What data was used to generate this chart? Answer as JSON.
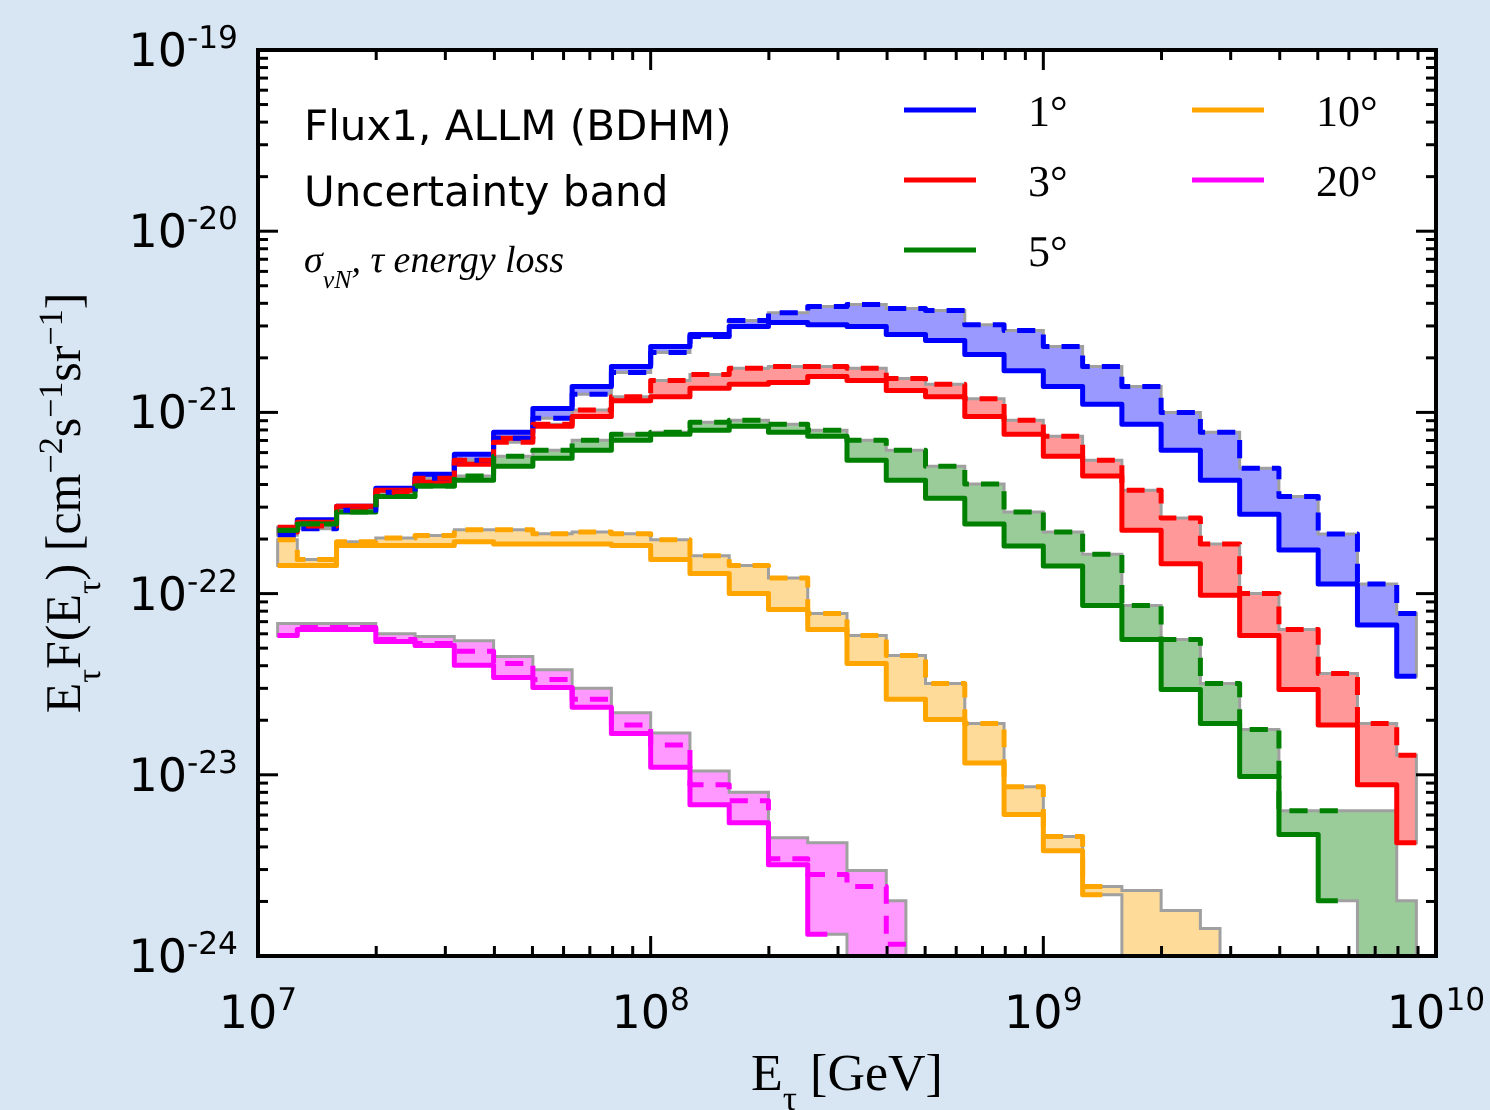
{
  "chart_data": {
    "type": "step",
    "xlabel": "E$_{τ}$ [GeV]",
    "ylabel": "E$_{τ}$F(E$_{τ}$) [cm$^{−2}$s$^{−1}$sr$^{−1}$]",
    "annotations": [
      "Flux1, ALLM (BDHM)",
      "Uncertainty band",
      "σ$_{νN}$, τ energy loss"
    ],
    "log": "xy",
    "legend": "top right",
    "xlim": [
      10000000,
      10000000000
    ],
    "ylim": [
      1e-24,
      1e-19
    ],
    "xticks": [
      {
        "value": 10000000,
        "label": "10$^{7}$"
      },
      {
        "value": 20000000,
        "label": null
      },
      {
        "value": 30000000,
        "label": null
      },
      {
        "value": 40000000,
        "label": null
      },
      {
        "value": 50000000,
        "label": null
      },
      {
        "value": 60000000,
        "label": null
      },
      {
        "value": 70000000,
        "label": null
      },
      {
        "value": 80000000,
        "label": null
      },
      {
        "value": 90000000,
        "label": null
      },
      {
        "value": 100000000,
        "label": "10$^{8}$"
      },
      {
        "value": 200000000,
        "label": null
      },
      {
        "value": 300000000,
        "label": null
      },
      {
        "value": 400000000,
        "label": null
      },
      {
        "value": 500000000,
        "label": null
      },
      {
        "value": 600000000,
        "label": null
      },
      {
        "value": 700000000,
        "label": null
      },
      {
        "value": 800000000,
        "label": null
      },
      {
        "value": 900000000,
        "label": null
      },
      {
        "value": 1000000000,
        "label": "10$^{9}$"
      },
      {
        "value": 2000000000,
        "label": null
      },
      {
        "value": 3000000000,
        "label": null
      },
      {
        "value": 4000000000,
        "label": null
      },
      {
        "value": 5000000000,
        "label": null
      },
      {
        "value": 6000000000,
        "label": null
      },
      {
        "value": 7000000000,
        "label": null
      },
      {
        "value": 8000000000,
        "label": null
      },
      {
        "value": 9000000000,
        "label": null
      },
      {
        "value": 10000000000,
        "label": "10$^{10}$"
      }
    ],
    "yticks": [
      {
        "value": 1e-24,
        "label": "10$^{-24}$"
      },
      {
        "value": 2e-24,
        "label": null
      },
      {
        "value": 3e-24,
        "label": null
      },
      {
        "value": 4e-24,
        "label": null
      },
      {
        "value": 5e-24,
        "label": null
      },
      {
        "value": 6e-24,
        "label": null
      },
      {
        "value": 7e-24,
        "label": null
      },
      {
        "value": 8e-24,
        "label": null
      },
      {
        "value": 9e-24,
        "label": null
      },
      {
        "value": 1e-23,
        "label": "10$^{-23}$"
      },
      {
        "value": 2e-23,
        "label": null
      },
      {
        "value": 3e-23,
        "label": null
      },
      {
        "value": 4e-23,
        "label": null
      },
      {
        "value": 5e-23,
        "label": null
      },
      {
        "value": 6e-23,
        "label": null
      },
      {
        "value": 7e-23,
        "label": null
      },
      {
        "value": 8e-23,
        "label": null
      },
      {
        "value": 9e-23,
        "label": null
      },
      {
        "value": 1e-22,
        "label": "10$^{-22}$"
      },
      {
        "value": 2e-22,
        "label": null
      },
      {
        "value": 3e-22,
        "label": null
      },
      {
        "value": 4e-22,
        "label": null
      },
      {
        "value": 5e-22,
        "label": null
      },
      {
        "value": 6e-22,
        "label": null
      },
      {
        "value": 7e-22,
        "label": null
      },
      {
        "value": 8e-22,
        "label": null
      },
      {
        "value": 9e-22,
        "label": null
      },
      {
        "value": 1e-21,
        "label": "10$^{-21}$"
      },
      {
        "value": 2e-21,
        "label": null
      },
      {
        "value": 3e-21,
        "label": null
      },
      {
        "value": 4e-21,
        "label": null
      },
      {
        "value": 5e-21,
        "label": null
      },
      {
        "value": 6e-21,
        "label": null
      },
      {
        "value": 7e-21,
        "label": null
      },
      {
        "value": 8e-21,
        "label": null
      },
      {
        "value": 9e-21,
        "label": null
      },
      {
        "value": 1e-20,
        "label": "10$^{-20}$"
      },
      {
        "value": 2e-20,
        "label": null
      },
      {
        "value": 3e-20,
        "label": null
      },
      {
        "value": 4e-20,
        "label": null
      },
      {
        "value": 5e-20,
        "label": null
      },
      {
        "value": 6e-20,
        "label": null
      },
      {
        "value": 7e-20,
        "label": null
      },
      {
        "value": 8e-20,
        "label": null
      },
      {
        "value": 9e-20,
        "label": null
      },
      {
        "value": 1e-19,
        "label": "10$^{-19}$"
      }
    ],
    "x": [
      11220000,
      14130000,
      17780000,
      22390000,
      28180000,
      35480000,
      44670000,
      56230000,
      70790000,
      89130000,
      112200000,
      141300000,
      177800000,
      223900000,
      281800000,
      354800000,
      446700000,
      562300000,
      707900000,
      891300000,
      1122000000,
      1413000000,
      1778000000,
      2239000000,
      2818000000,
      3548000000,
      4467000000,
      5623000000,
      7079000000,
      8913000000
    ],
    "series": [
      {
        "name": "1°",
        "color": "#0000ff",
        "values": [
          2.27e-22,
          2.56e-22,
          3.03e-22,
          3.82e-22,
          4.56e-22,
          5.87e-22,
          7.76e-22,
          1.05e-21,
          1.39e-21,
          1.79e-21,
          2.31e-21,
          2.69e-21,
          2.98e-21,
          3.13e-21,
          3.05e-21,
          2.98e-21,
          2.69e-21,
          2.49e-21,
          2.09e-21,
          1.7e-21,
          1.39e-21,
          1.11e-21,
          8.6e-22,
          6.18e-22,
          4.22e-22,
          2.74e-22,
          1.74e-22,
          1.13e-22,
          6.7e-23,
          3.5e-23
        ],
        "lower": [
          2.1e-22,
          2.28e-22,
          2.88e-22,
          3.62e-22,
          4.33e-22,
          5.44e-22,
          7.19e-22,
          9.27e-22,
          1.26e-21,
          1.66e-21,
          2.14e-21,
          2.62e-21,
          2.98e-21,
          3.13e-21,
          3.05e-21,
          2.98e-21,
          2.69e-21,
          2.49e-21,
          2.09e-21,
          1.7e-21,
          1.39e-21,
          1.11e-21,
          8.6e-22,
          6.18e-22,
          4.22e-22,
          2.74e-22,
          1.74e-22,
          1.13e-22,
          6.7e-23,
          3.5e-23
        ],
        "upper": [
          2.27e-22,
          2.56e-22,
          3.03e-22,
          3.82e-22,
          4.56e-22,
          5.87e-22,
          7.76e-22,
          1.05e-21,
          1.39e-21,
          1.79e-21,
          2.31e-21,
          2.69e-21,
          3.21e-21,
          3.55e-21,
          3.84e-21,
          3.94e-21,
          3.74e-21,
          3.65e-21,
          3.05e-21,
          2.83e-21,
          2.31e-21,
          1.79e-21,
          1.39e-21,
          1e-21,
          7.76e-22,
          4.92e-22,
          3.44e-22,
          2.13e-22,
          1.13e-22,
          7.76e-23
        ]
      },
      {
        "name": "3°",
        "color": "#ff0000",
        "values": [
          2.19e-22,
          2.48e-22,
          3.03e-22,
          3.72e-22,
          4.12e-22,
          5.17e-22,
          7.19e-22,
          8.38e-22,
          9.5e-22,
          1.16e-21,
          1.22e-21,
          1.36e-21,
          1.43e-21,
          1.46e-21,
          1.58e-21,
          1.5e-21,
          1.32e-21,
          1.22e-21,
          9.5e-22,
          7.57e-22,
          5.73e-22,
          4.45e-22,
          2.24e-22,
          1.46e-22,
          9.8e-23,
          5.87e-23,
          2.96e-23,
          1.88e-23,
          8.8e-24,
          4.22e-24
        ],
        "lower": [
          2.19e-22,
          2.36e-22,
          2.88e-22,
          3.62e-22,
          4.12e-22,
          5.17e-22,
          6.84e-22,
          8.38e-22,
          9.5e-22,
          1.16e-21,
          1.22e-21,
          1.36e-21,
          1.43e-21,
          1.46e-21,
          1.58e-21,
          1.5e-21,
          1.32e-21,
          1.22e-21,
          9.5e-22,
          7.57e-22,
          5.73e-22,
          4.45e-22,
          2.24e-22,
          1.46e-22,
          9.8e-23,
          5.87e-23,
          2.96e-23,
          1.88e-23,
          8.8e-24,
          4.22e-24
        ],
        "upper": [
          2.32e-22,
          2.48e-22,
          3.03e-22,
          3.72e-22,
          4.33e-22,
          5.44e-22,
          7.19e-22,
          8.6e-22,
          1.03e-21,
          1.22e-21,
          1.5e-21,
          1.62e-21,
          1.75e-21,
          1.79e-21,
          1.79e-21,
          1.75e-21,
          1.54e-21,
          1.43e-21,
          1.19e-21,
          9.04e-22,
          7.38e-22,
          5.44e-22,
          3.72e-22,
          2.61e-22,
          1.88e-22,
          1e-22,
          6.34e-23,
          3.62e-23,
          1.92e-23,
          1.28e-23
        ]
      },
      {
        "name": "5°",
        "color": "#008000",
        "values": [
          2.24e-22,
          2.42e-22,
          2.82e-22,
          3.44e-22,
          3.92e-22,
          4.22e-22,
          5.04e-22,
          5.58e-22,
          6.18e-22,
          7.01e-22,
          7.57e-22,
          7.96e-22,
          8.38e-22,
          7.76e-22,
          7.38e-22,
          5.44e-22,
          4.22e-22,
          3.36e-22,
          2.42e-22,
          1.83e-22,
          1.42e-22,
          8.6e-23,
          5.58e-23,
          2.96e-23,
          1.92e-23,
          9.8e-24,
          4.68e-24,
          2.02e-24,
          null,
          null
        ],
        "lower": [
          2.24e-22,
          2.42e-22,
          2.82e-22,
          3.44e-22,
          3.92e-22,
          4.22e-22,
          5.04e-22,
          5.58e-22,
          6.18e-22,
          7.01e-22,
          7.57e-22,
          7.96e-22,
          8.38e-22,
          7.76e-22,
          7.38e-22,
          5.44e-22,
          4.22e-22,
          3.36e-22,
          2.42e-22,
          1.83e-22,
          1.42e-22,
          8.6e-23,
          5.58e-23,
          2.96e-23,
          1.92e-23,
          9.8e-24,
          4.68e-24,
          2.02e-24,
          1e-24,
          1e-24
        ],
        "upper": [
          2.24e-22,
          2.42e-22,
          2.82e-22,
          3.44e-22,
          3.92e-22,
          4.45e-22,
          5.73e-22,
          6.18e-22,
          7.01e-22,
          7.57e-22,
          7.76e-22,
          8.81e-22,
          9.04e-22,
          8.6e-22,
          7.96e-22,
          7.01e-22,
          6.18e-22,
          5.04e-22,
          4.02e-22,
          2.82e-22,
          2.19e-22,
          1.65e-22,
          8.6e-23,
          5.58e-23,
          3.19e-23,
          1.78e-23,
          6.34e-24,
          6.34e-24,
          6.34e-24,
          2.02e-24
        ]
      },
      {
        "name": "10°",
        "color": "#ffa500",
        "values": [
          1.43e-22,
          1.43e-22,
          1.84e-22,
          1.84e-22,
          1.84e-22,
          1.93e-22,
          1.88e-22,
          1.88e-22,
          1.88e-22,
          1.84e-22,
          1.54e-22,
          1.29e-22,
          1e-22,
          8.17e-23,
          6.34e-23,
          4.12e-23,
          2.61e-23,
          2.02e-23,
          1.16e-23,
          6.03e-24,
          3.81e-24,
          2.18e-24,
          null,
          null,
          null,
          null,
          null,
          null,
          null,
          null
        ],
        "lower": [
          1.43e-22,
          1.43e-22,
          1.84e-22,
          1.84e-22,
          1.84e-22,
          1.93e-22,
          1.88e-22,
          1.88e-22,
          1.88e-22,
          1.84e-22,
          1.54e-22,
          1.29e-22,
          1e-22,
          8.17e-23,
          6.34e-23,
          4.12e-23,
          2.61e-23,
          2.02e-23,
          1.16e-23,
          6.03e-24,
          3.81e-24,
          2.18e-24,
          1e-24,
          1e-24,
          1e-24,
          null,
          null,
          null,
          null,
          null
        ],
        "upper": [
          1.98e-22,
          1.54e-22,
          1.93e-22,
          2.03e-22,
          2.09e-22,
          2.25e-22,
          2.25e-22,
          2.14e-22,
          2.19e-22,
          2.14e-22,
          1.98e-22,
          1.62e-22,
          1.43e-22,
          1.22e-22,
          7.76e-23,
          5.87e-23,
          4.56e-23,
          3.19e-23,
          1.92e-23,
          8.6e-24,
          4.56e-24,
          2.42e-24,
          2.3e-24,
          1.78e-24,
          1.42e-24,
          null,
          null,
          null,
          null,
          null
        ]
      },
      {
        "name": "20°",
        "color": "#ff00ff",
        "values": [
          5.87e-23,
          6.34e-23,
          6.34e-23,
          5.44e-23,
          5.17e-23,
          4.02e-23,
          3.44e-23,
          3.03e-23,
          2.36e-23,
          1.69e-23,
          1.1e-23,
          6.84e-24,
          5.44e-24,
          3.19e-24,
          1.32e-24,
          null,
          null,
          null,
          null,
          null,
          null,
          null,
          null,
          null,
          null,
          null,
          null,
          null,
          null,
          null
        ],
        "lower": [
          5.87e-23,
          6.34e-23,
          6.34e-23,
          5.44e-23,
          5.17e-23,
          4.02e-23,
          3.44e-23,
          3.03e-23,
          2.36e-23,
          1.69e-23,
          1.1e-23,
          6.84e-24,
          5.44e-24,
          3.19e-24,
          1.32e-24,
          1e-24,
          1e-24,
          null,
          null,
          null,
          null,
          null,
          null,
          null,
          null,
          null,
          null,
          null,
          null,
          null
        ],
        "upper": [
          6.84e-23,
          6.84e-23,
          6.84e-23,
          6e-23,
          5.8e-23,
          5.5e-23,
          4.5e-23,
          3.8e-23,
          3e-23,
          2.2e-23,
          1.7e-23,
          1.05e-23,
          8e-24,
          4.5e-24,
          4.22e-24,
          2.96e-24,
          2.02e-24,
          null,
          null,
          null,
          null,
          null,
          null,
          null,
          null,
          null,
          null,
          null,
          null,
          null
        ]
      },
      {
        "color": "#0000ff",
        "line_style": "dashed",
        "values": [
          2.1e-22,
          2.28e-22,
          2.88e-22,
          3.62e-22,
          4.33e-22,
          5.44e-22,
          7.19e-22,
          9.27e-22,
          1.26e-21,
          1.66e-21,
          2.14e-21,
          2.62e-21,
          3.21e-21,
          3.55e-21,
          3.84e-21,
          3.94e-21,
          3.74e-21,
          3.65e-21,
          3.05e-21,
          2.83e-21,
          2.31e-21,
          1.79e-21,
          1.39e-21,
          1e-21,
          7.76e-22,
          4.92e-22,
          3.44e-22,
          2.13e-22,
          1.13e-22,
          7.76e-23
        ]
      },
      {
        "color": "#ff0000",
        "line_style": "dashed",
        "values": [
          2.32e-22,
          2.36e-22,
          2.88e-22,
          3.62e-22,
          4.33e-22,
          5.44e-22,
          6.84e-22,
          8.6e-22,
          1.03e-21,
          1.22e-21,
          1.5e-21,
          1.62e-21,
          1.75e-21,
          1.79e-21,
          1.79e-21,
          1.75e-21,
          1.54e-21,
          1.43e-21,
          1.19e-21,
          9.04e-22,
          7.38e-22,
          5.44e-22,
          3.72e-22,
          2.61e-22,
          1.88e-22,
          1e-22,
          6.34e-23,
          3.62e-23,
          1.92e-23,
          1.28e-23
        ]
      },
      {
        "color": "#008000",
        "line_style": "dashed",
        "values": [
          2.24e-22,
          2.42e-22,
          2.82e-22,
          3.44e-22,
          3.92e-22,
          4.45e-22,
          5.73e-22,
          6.18e-22,
          7.01e-22,
          7.57e-22,
          7.76e-22,
          8.81e-22,
          9.04e-22,
          8.6e-22,
          7.96e-22,
          7.01e-22,
          6.18e-22,
          5.04e-22,
          4.02e-22,
          2.82e-22,
          2.19e-22,
          1.65e-22,
          8.6e-23,
          5.58e-23,
          3.19e-23,
          1.78e-23,
          6.34e-24,
          6.34e-24,
          null,
          null
        ]
      },
      {
        "color": "#ffa500",
        "line_style": "dashed",
        "values": [
          1.98e-22,
          1.54e-22,
          1.93e-22,
          2.03e-22,
          2.09e-22,
          2.25e-22,
          2.25e-22,
          2.14e-22,
          2.19e-22,
          2.14e-22,
          1.98e-22,
          1.62e-22,
          1.43e-22,
          1.22e-22,
          7.76e-23,
          5.87e-23,
          4.56e-23,
          3.19e-23,
          1.92e-23,
          8.6e-24,
          4.56e-24,
          2.42e-24,
          null,
          null,
          null,
          null,
          null,
          null,
          null,
          null
        ]
      },
      {
        "color": "#ff00ff",
        "line_style": "dashed",
        "values": [
          5.87e-23,
          6.5e-23,
          6.5e-23,
          5.58e-23,
          5.31e-23,
          4.8e-23,
          4.12e-23,
          3.36e-23,
          2.61e-23,
          1.88e-23,
          1.46e-23,
          8.81e-24,
          7.19e-24,
          3.44e-24,
          2.82e-24,
          2.42e-24,
          1.16e-24,
          null,
          null,
          null,
          null,
          null,
          null,
          null,
          null,
          null,
          null,
          null,
          null,
          null
        ]
      }
    ]
  }
}
